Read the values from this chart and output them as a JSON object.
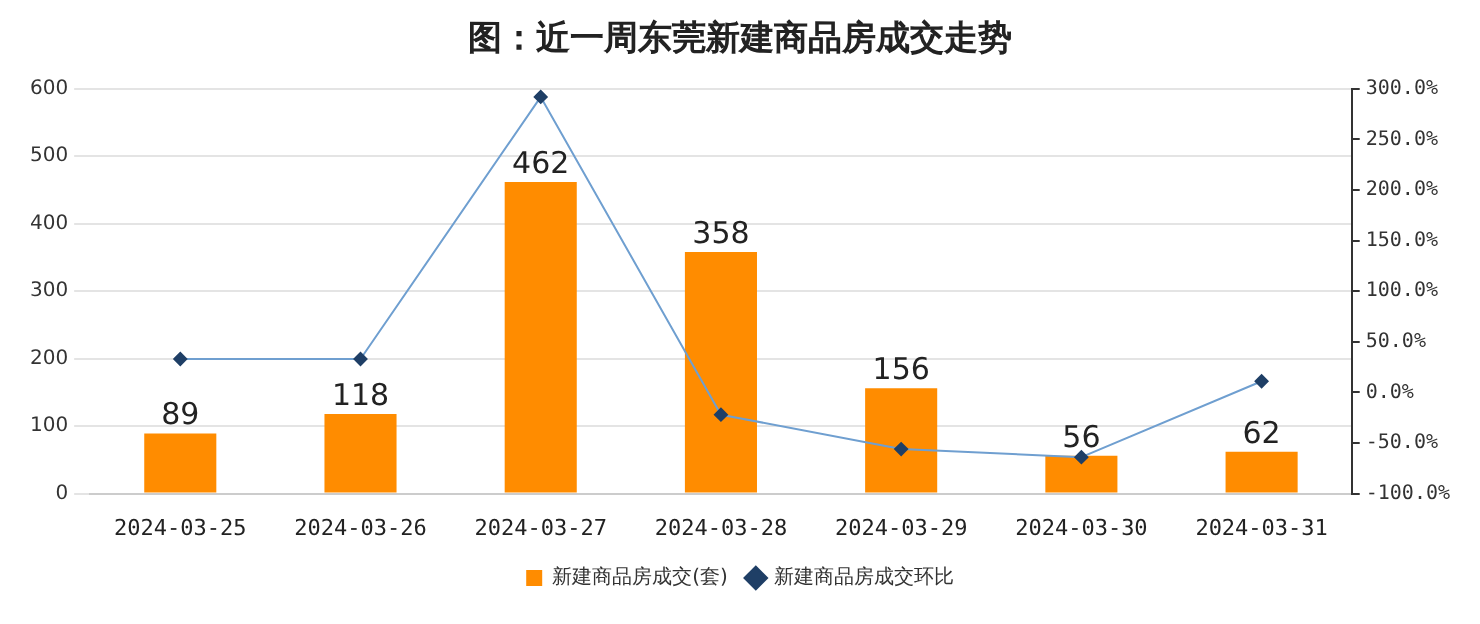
{
  "chart_data": {
    "type": "bar",
    "title": "图：近一周东莞新建商品房成交走势",
    "categories": [
      "2024-03-25",
      "2024-03-26",
      "2024-03-27",
      "2024-03-28",
      "2024-03-29",
      "2024-03-30",
      "2024-03-31"
    ],
    "series": [
      {
        "name": "新建商品房成交(套)",
        "color": "#ff8c00",
        "values": [
          89,
          118,
          462,
          358,
          156,
          56,
          62
        ],
        "value_labels": [
          "89",
          "118",
          "462",
          "358",
          "156",
          "56",
          "62"
        ]
      },
      {
        "name": "新建商品房成交环比",
        "type": "line",
        "axis": "y2",
        "color": "#6f9fd0",
        "marker": "diamond",
        "values": [
          33,
          33,
          292,
          -22,
          -56,
          -64,
          11
        ]
      }
    ],
    "ylim": [
      0,
      600
    ],
    "yticks": [
      0,
      100,
      200,
      300,
      400,
      500,
      600
    ],
    "y2lim": [
      -100,
      300
    ],
    "y2ticks": [
      {
        "value": -100,
        "label": "-100.0%"
      },
      {
        "value": -50,
        "label": "-50.0%"
      },
      {
        "value": 0,
        "label": "0.0%"
      },
      {
        "value": 50,
        "label": "50.0%"
      },
      {
        "value": 100,
        "label": "100.0%"
      },
      {
        "value": 150,
        "label": "150.0%"
      },
      {
        "value": 200,
        "label": "200.0%"
      },
      {
        "value": 250,
        "label": "250.0%"
      },
      {
        "value": 300,
        "label": "300.0%"
      }
    ],
    "grid": "y",
    "legend": "bottom"
  }
}
